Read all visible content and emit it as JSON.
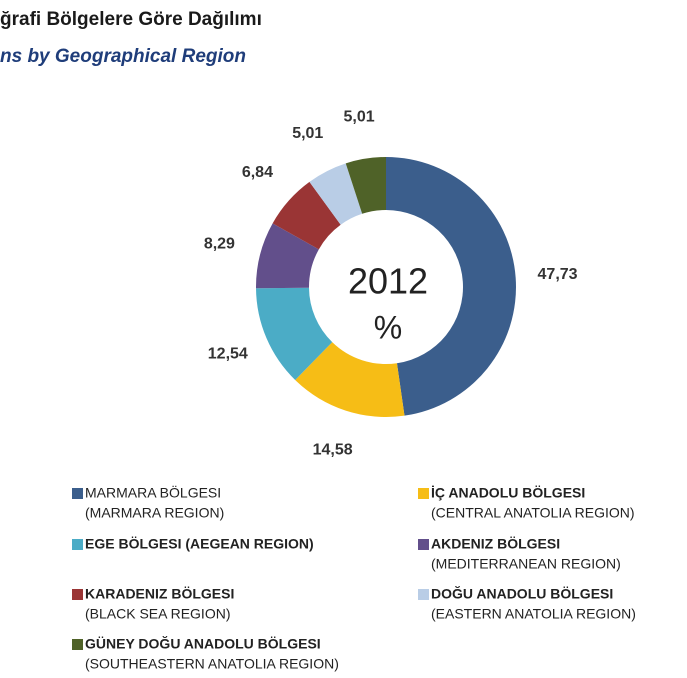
{
  "chart_data": {
    "type": "donut",
    "title": "ğrafi Bölgelere Göre Dağılımı",
    "subtitle": "ns by Geographical Region",
    "center_label": [
      "2012",
      "%"
    ],
    "categories": [
      [
        "MARMARA BÖLGESI",
        "(MARMARA REGION)"
      ],
      [
        "İÇ ANADOLU BÖLGESI",
        "(CENTRAL ANATOLIA REGION)"
      ],
      [
        "EGE BÖLGESI (AEGEAN REGION)"
      ],
      [
        "AKDENIZ BÖLGESI",
        "(MEDITERRANEAN REGION)"
      ],
      [
        "KARADENIZ BÖLGESI",
        "(BLACK SEA REGION)"
      ],
      [
        "DOĞU ANADOLU BÖLGESI",
        "(EASTERN ANATOLIA REGION)"
      ],
      [
        "GÜNEY DOĞU ANADOLU BÖLGESI",
        "(SOUTHEASTERN ANATOLIA REGION)"
      ]
    ],
    "bold_first_line": [
      false,
      true,
      true,
      true,
      true,
      true,
      true
    ],
    "values": [
      47.73,
      14.58,
      12.54,
      8.29,
      6.84,
      5.01,
      5.01
    ],
    "value_labels": [
      "47,73",
      "14,58",
      "12,54",
      "8,29",
      "6,84",
      "5,01",
      "5,01"
    ],
    "colors": [
      "#3b5e8c",
      "#f6bd16",
      "#4bacc6",
      "#624f8b",
      "#9a3535",
      "#b9cde6",
      "#4f6228"
    ]
  }
}
